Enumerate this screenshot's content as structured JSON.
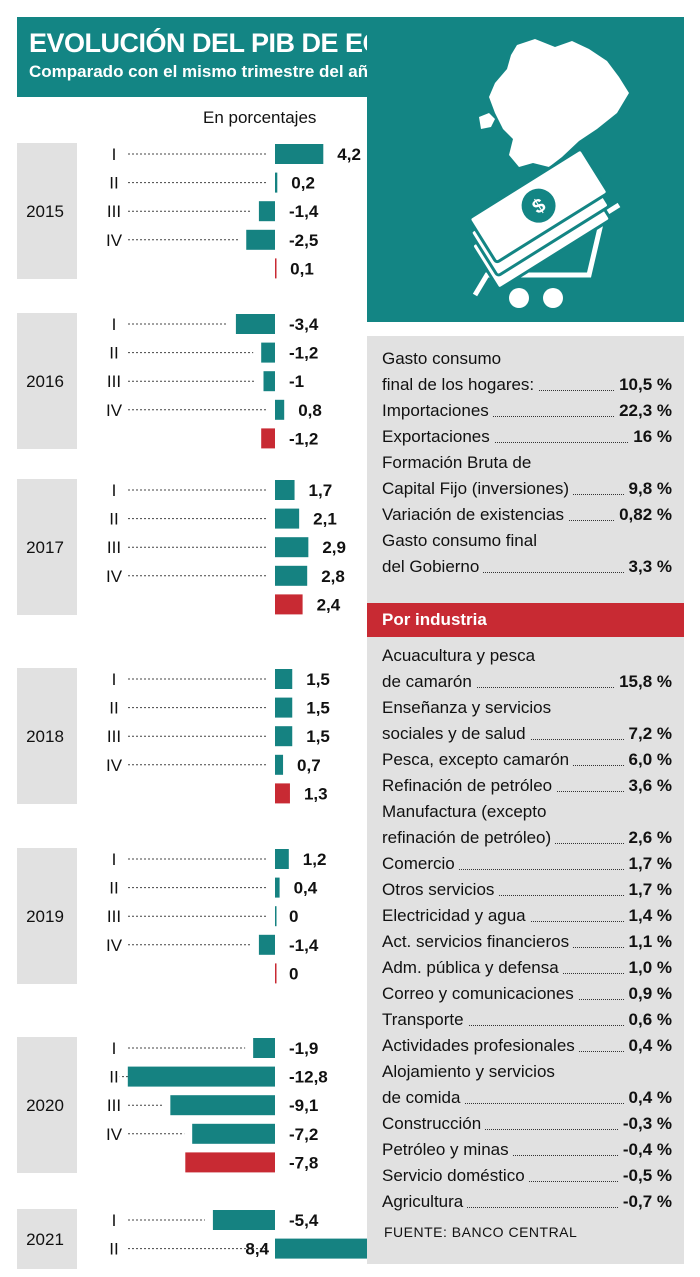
{
  "header": {
    "title": "EVOLUCIÓN DEL PIB DE ECUADOR",
    "subtitle": "Comparado con el mismo trimestre del año previo"
  },
  "chart_data": {
    "type": "bar",
    "orientation": "horizontal",
    "unit_label": "En porcentajes",
    "xlabel": "",
    "ylabel": "",
    "colors": {
      "quarter": "#158281",
      "annual": "#c82a33"
    },
    "years": [
      {
        "year": "2015",
        "quarters": [
          {
            "label": "I",
            "value": 4.2,
            "text": "4,2"
          },
          {
            "label": "II",
            "value": 0.2,
            "text": "0,2"
          },
          {
            "label": "III",
            "value": -1.4,
            "text": "-1,4"
          },
          {
            "label": "IV",
            "value": -2.5,
            "text": "-2,5"
          }
        ],
        "annual": {
          "value": 0.1,
          "text": "0,1"
        }
      },
      {
        "year": "2016",
        "quarters": [
          {
            "label": "I",
            "value": -3.4,
            "text": "-3,4"
          },
          {
            "label": "II",
            "value": -1.2,
            "text": "-1,2"
          },
          {
            "label": "III",
            "value": -1,
            "text": "-1"
          },
          {
            "label": "IV",
            "value": 0.8,
            "text": "0,8"
          }
        ],
        "annual": {
          "value": -1.2,
          "text": "-1,2"
        }
      },
      {
        "year": "2017",
        "quarters": [
          {
            "label": "I",
            "value": 1.7,
            "text": "1,7"
          },
          {
            "label": "II",
            "value": 2.1,
            "text": "2,1"
          },
          {
            "label": "III",
            "value": 2.9,
            "text": "2,9"
          },
          {
            "label": "IV",
            "value": 2.8,
            "text": "2,8"
          }
        ],
        "annual": {
          "value": 2.4,
          "text": "2,4"
        }
      },
      {
        "year": "2018",
        "quarters": [
          {
            "label": "I",
            "value": 1.5,
            "text": "1,5"
          },
          {
            "label": "II",
            "value": 1.5,
            "text": "1,5"
          },
          {
            "label": "III",
            "value": 1.5,
            "text": "1,5"
          },
          {
            "label": "IV",
            "value": 0.7,
            "text": "0,7"
          }
        ],
        "annual": {
          "value": 1.3,
          "text": "1,3"
        }
      },
      {
        "year": "2019",
        "quarters": [
          {
            "label": "I",
            "value": 1.2,
            "text": "1,2"
          },
          {
            "label": "II",
            "value": 0.4,
            "text": "0,4"
          },
          {
            "label": "III",
            "value": 0,
            "text": "0"
          },
          {
            "label": "IV",
            "value": -1.4,
            "text": "-1,4"
          }
        ],
        "annual": {
          "value": 0,
          "text": "0"
        }
      },
      {
        "year": "2020",
        "quarters": [
          {
            "label": "I",
            "value": -1.9,
            "text": "-1,9"
          },
          {
            "label": "II",
            "value": -12.8,
            "text": "-12,8"
          },
          {
            "label": "III",
            "value": -9.1,
            "text": "-9,1"
          },
          {
            "label": "IV",
            "value": -7.2,
            "text": "-7,2"
          }
        ],
        "annual": {
          "value": -7.8,
          "text": "-7,8"
        }
      },
      {
        "year": "2021",
        "quarters": [
          {
            "label": "I",
            "value": -5.4,
            "text": "-5,4"
          },
          {
            "label": "II",
            "value": 8.4,
            "text": "8,4"
          }
        ],
        "annual": null
      }
    ]
  },
  "components": [
    {
      "label": "Gasto consumo",
      "label2": "final de los hogares:",
      "value": "10,5 %"
    },
    {
      "label": "Importaciones",
      "value": "22,3 %"
    },
    {
      "label": "Exportaciones",
      "value": "16 %"
    },
    {
      "label": "Formación Bruta de",
      "label2": "Capital Fijo (inversiones)",
      "value": "9,8 %"
    },
    {
      "label": "Variación de existencias",
      "value": "0,82 %"
    },
    {
      "label": "Gasto consumo final",
      "label2": "del Gobierno",
      "value": "3,3 %"
    }
  ],
  "industry_header": "Por industria",
  "industries": [
    {
      "label": "Acuacultura y pesca",
      "label2": "de camarón",
      "value": "15,8 %"
    },
    {
      "label": "Enseñanza y servicios",
      "label2": "sociales y de salud",
      "value": "7,2 %"
    },
    {
      "label": "Pesca, excepto camarón",
      "value": "6,0 %"
    },
    {
      "label": "Refinación de petróleo",
      "value": "3,6 %"
    },
    {
      "label": "Manufactura (excepto",
      "label2": "refinación de petróleo)",
      "value": "2,6 %"
    },
    {
      "label": "Comercio",
      "value": "1,7 %"
    },
    {
      "label": "Otros servicios",
      "value": "1,7 %"
    },
    {
      "label": "Electricidad y agua",
      "value": "1,4 %"
    },
    {
      "label": "Act. servicios financieros",
      "value": "1,1 %"
    },
    {
      "label": "Adm. pública y defensa",
      "value": "1,0 %"
    },
    {
      "label": "Correo y comunicaciones",
      "value": "0,9 %"
    },
    {
      "label": "Transporte",
      "value": "0,6 %"
    },
    {
      "label": "Actividades profesionales",
      "value": "0,4 %"
    },
    {
      "label": "Alojamiento y servicios",
      "label2": "de comida",
      "value": "0,4 %"
    },
    {
      "label": "Construcción",
      "value": "-0,3 %"
    },
    {
      "label": "Petróleo y minas",
      "value": "-0,4 %"
    },
    {
      "label": "Servicio doméstico",
      "value": "-0,5 %"
    },
    {
      "label": "Agricultura",
      "value": "-0,7 %"
    }
  ],
  "source": "FUENTE: BANCO CENTRAL"
}
